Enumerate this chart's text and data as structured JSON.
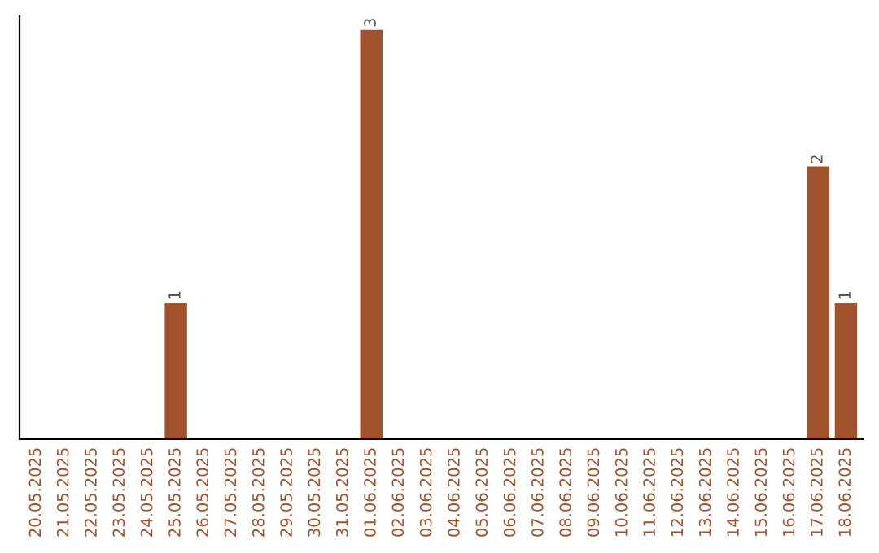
{
  "chart_data": {
    "type": "bar",
    "categories": [
      "20.05.2025",
      "21.05.2025",
      "22.05.2025",
      "23.05.2025",
      "24.05.2025",
      "25.05.2025",
      "26.05.2025",
      "27.05.2025",
      "28.05.2025",
      "29.05.2025",
      "30.05.2025",
      "31.05.2025",
      "01.06.2025",
      "02.06.2025",
      "03.06.2025",
      "04.06.2025",
      "05.06.2025",
      "06.06.2025",
      "07.06.2025",
      "08.06.2025",
      "09.06.2025",
      "10.06.2025",
      "11.06.2025",
      "12.06.2025",
      "13.06.2025",
      "14.06.2025",
      "15.06.2025",
      "16.06.2025",
      "17.06.2025",
      "18.06.2025"
    ],
    "values": [
      0,
      0,
      0,
      0,
      0,
      1,
      0,
      0,
      0,
      0,
      0,
      0,
      3,
      0,
      0,
      0,
      0,
      0,
      0,
      0,
      0,
      0,
      0,
      0,
      0,
      0,
      0,
      0,
      2,
      1
    ],
    "color": "#a0522d",
    "ylim": [
      0,
      3.1
    ],
    "value_labels": [
      null,
      null,
      null,
      null,
      null,
      "1",
      null,
      null,
      null,
      null,
      null,
      null,
      "3",
      null,
      null,
      null,
      null,
      null,
      null,
      null,
      null,
      null,
      null,
      null,
      null,
      null,
      null,
      null,
      "2",
      "1"
    ],
    "tick_labels": "x",
    "grid": false,
    "legend": false
  }
}
